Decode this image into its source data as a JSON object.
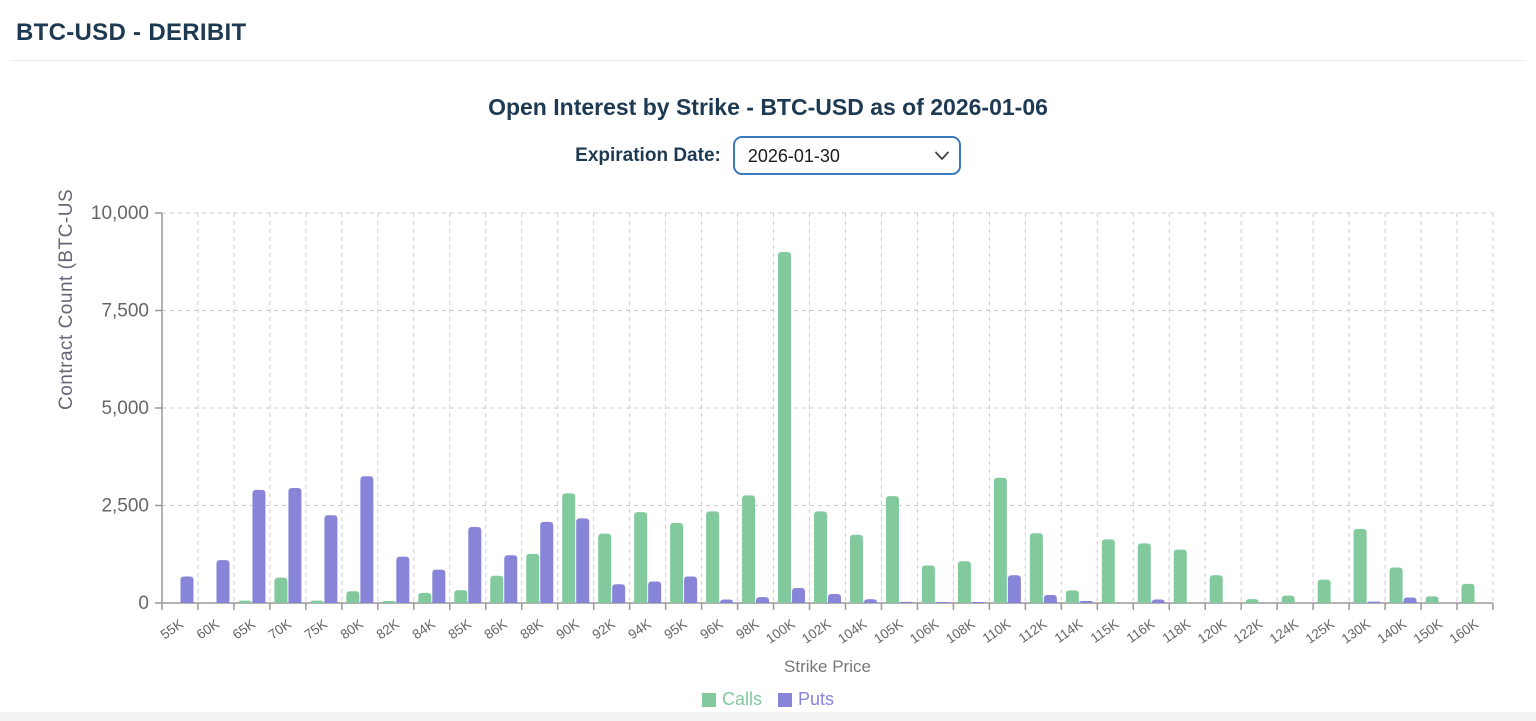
{
  "header": {
    "title": "BTC-USD - DERIBIT"
  },
  "controls": {
    "expiration_label": "Expiration Date:",
    "expiration_value": "2026-01-30",
    "chevron_icon": "chevron-down-icon"
  },
  "colors": {
    "heading": "#1e3a52",
    "calls": "#82ca9d",
    "puts": "#8884d8",
    "select_border": "#3a7abc",
    "axis_text": "#666666",
    "grid": "#cccccc",
    "axis_line": "#999999"
  },
  "chart_data": {
    "type": "bar",
    "title": "Open Interest by Strike - BTC-USD as of 2026-01-06",
    "xlabel": "Strike Price",
    "ylabel": "Contract Count (BTC-US",
    "ylim": [
      0,
      10000
    ],
    "yticks": [
      0,
      2500,
      5000,
      7500,
      10000
    ],
    "ytick_labels": [
      "0",
      "2,500",
      "5,000",
      "7,500",
      "10,000"
    ],
    "grid": true,
    "legend_position": "bottom",
    "categories": [
      "55K",
      "60K",
      "65K",
      "70K",
      "75K",
      "80K",
      "82K",
      "84K",
      "85K",
      "86K",
      "88K",
      "90K",
      "92K",
      "94K",
      "95K",
      "96K",
      "98K",
      "100K",
      "102K",
      "104K",
      "105K",
      "106K",
      "108K",
      "110K",
      "112K",
      "114K",
      "115K",
      "116K",
      "118K",
      "120K",
      "122K",
      "124K",
      "125K",
      "130K",
      "140K",
      "150K",
      "160K"
    ],
    "series": [
      {
        "name": "Calls",
        "color": "#82ca9d",
        "values": [
          0,
          0,
          60,
          650,
          60,
          300,
          50,
          260,
          330,
          700,
          1260,
          2810,
          1780,
          2330,
          2050,
          2350,
          2760,
          9000,
          2350,
          1750,
          2740,
          960,
          1070,
          3210,
          1790,
          325,
          1630,
          1530,
          1370,
          710,
          100,
          190,
          600,
          1900,
          910,
          170,
          490
        ]
      },
      {
        "name": "Puts",
        "color": "#8884d8",
        "values": [
          680,
          1100,
          2900,
          2950,
          2250,
          3250,
          1190,
          855,
          1950,
          1225,
          2080,
          2170,
          480,
          550,
          680,
          90,
          150,
          385,
          230,
          95,
          30,
          25,
          25,
          710,
          205,
          50,
          0,
          90,
          0,
          0,
          0,
          0,
          0,
          35,
          140,
          0,
          0
        ]
      }
    ]
  }
}
